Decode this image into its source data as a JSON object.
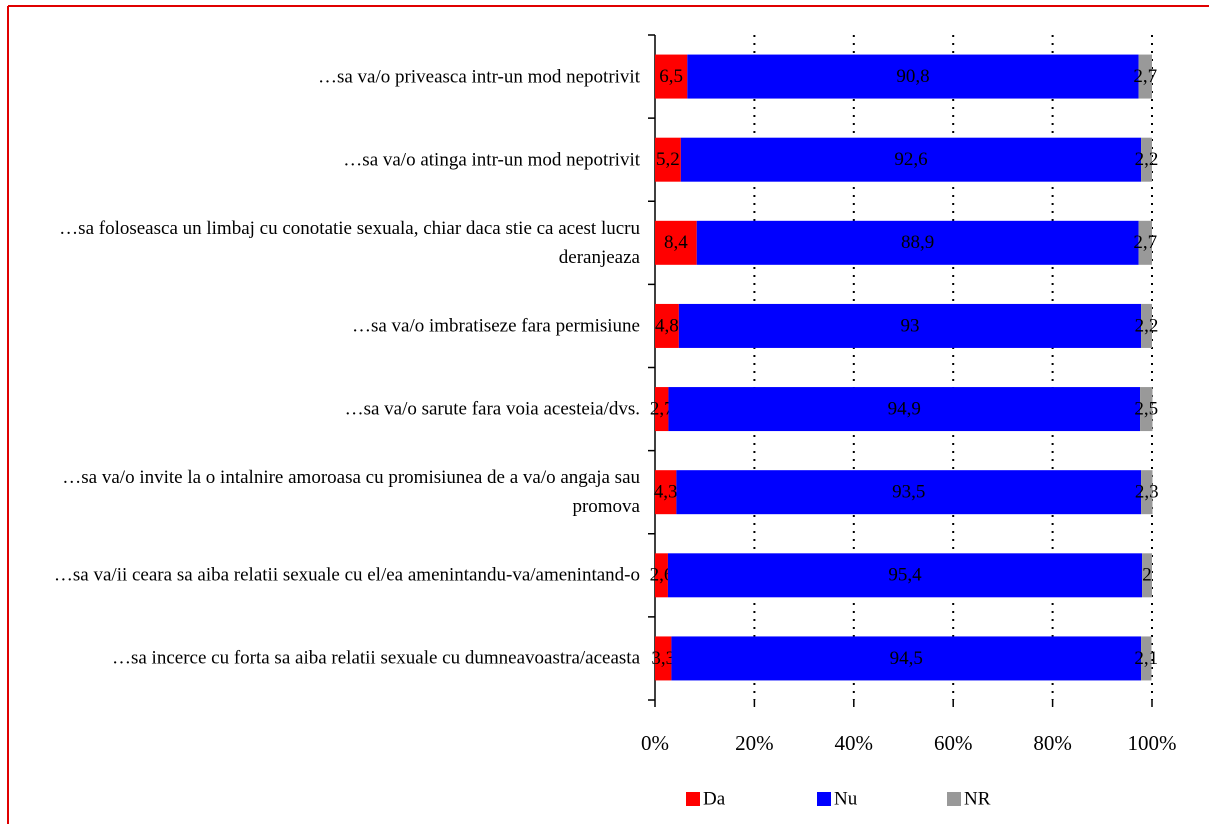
{
  "chart_data": {
    "type": "stacked-barh",
    "categories": [
      "…sa va/o priveasca intr-un mod nepotrivit",
      "…sa va/o atinga intr-un mod nepotrivit",
      "…sa foloseasca un limbaj cu conotatie sexuala, chiar daca stie ca acest lucru deranjeaza",
      "…sa va/o imbratiseze fara permisiune",
      "…sa va/o sarute fara voia acesteia/dvs.",
      "…sa va/o invite la o intalnire amoroasa cu promisiunea de a va/o angaja sau promova",
      "…sa va/ii ceara sa aiba relatii sexuale cu el/ea amenintandu-va/amenintand-o",
      "…sa incerce cu forta sa aiba relatii sexuale cu dumneavoastra/aceasta"
    ],
    "series": [
      {
        "name": "Da",
        "color": "#ff0000",
        "values": [
          6.5,
          5.2,
          8.4,
          4.8,
          2.7,
          4.3,
          2.6,
          3.3
        ],
        "value_labels": [
          "6,5",
          "5,2",
          "8,4",
          "4,8",
          "2,7",
          "4,3",
          "2,6",
          "3,3"
        ]
      },
      {
        "name": "Nu",
        "color": "#0000ff",
        "values": [
          90.8,
          92.6,
          88.9,
          93,
          94.9,
          93.5,
          95.4,
          94.5
        ],
        "value_labels": [
          "90,8",
          "92,6",
          "88,9",
          "93",
          "94,9",
          "93,5",
          "95,4",
          "94,5"
        ]
      },
      {
        "name": "NR",
        "color": "#999999",
        "values": [
          2.7,
          2.2,
          2.7,
          2.2,
          2.5,
          2.3,
          2,
          2.1
        ],
        "value_labels": [
          "2,7",
          "2,2",
          "2,7",
          "2,2",
          "2,5",
          "2,3",
          "2",
          "2,1"
        ]
      }
    ],
    "xlim": [
      0,
      100
    ],
    "xticks": [
      {
        "value": 0,
        "label": "0%"
      },
      {
        "value": 20,
        "label": "20%"
      },
      {
        "value": 40,
        "label": "40%"
      },
      {
        "value": 60,
        "label": "60%"
      },
      {
        "value": 80,
        "label": "80%"
      },
      {
        "value": 100,
        "label": "100%"
      }
    ],
    "grid": true,
    "legend": "bottom"
  }
}
